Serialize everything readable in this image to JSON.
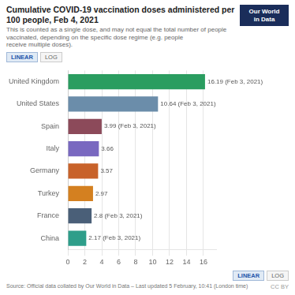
{
  "chart_data": {
    "type": "bar",
    "orientation": "horizontal",
    "title": "Cumulative COVID-19 vaccination doses administered per 100 people, Feb 4, 2021",
    "subtitle": "This is counted as a single dose, and may not equal the total number of people vaccinated, depending on the specific dose regime (e.g. people\nreceive multiple doses).",
    "categories": [
      "United Kingdom",
      "United States",
      "Spain",
      "Italy",
      "Germany",
      "Turkey",
      "France",
      "China"
    ],
    "values": [
      16.19,
      10.64,
      3.99,
      3.66,
      3.57,
      2.97,
      2.8,
      2.17
    ],
    "value_labels": [
      "16.19 (Feb 3, 2021)",
      "10.64 (Feb 3, 2021)",
      "3.99 (Feb 3, 2021)",
      "3.66",
      "3.57",
      "2.97",
      "2.8 (Feb 3, 2021)",
      "2.17 (Feb 3, 2021)"
    ],
    "data_labels": true,
    "colors": [
      "#2A9D60",
      "#6B8DAA",
      "#8C4A5A",
      "#7968C0",
      "#C8622A",
      "#D48020",
      "#4A5F78",
      "#2E9E8A"
    ],
    "xlim": [
      0,
      17.5
    ],
    "xticks": [
      0,
      2,
      4,
      6,
      8,
      10,
      12,
      14,
      16
    ],
    "grid": true,
    "annotations": [
      "LINEAR",
      "LOG",
      "Our World\nin Data",
      "LINEAR",
      "LOG",
      "Source: Official data collated by Our World in Data – Last updated 5 February, 10:41 (London time)",
      "CC BY"
    ]
  }
}
